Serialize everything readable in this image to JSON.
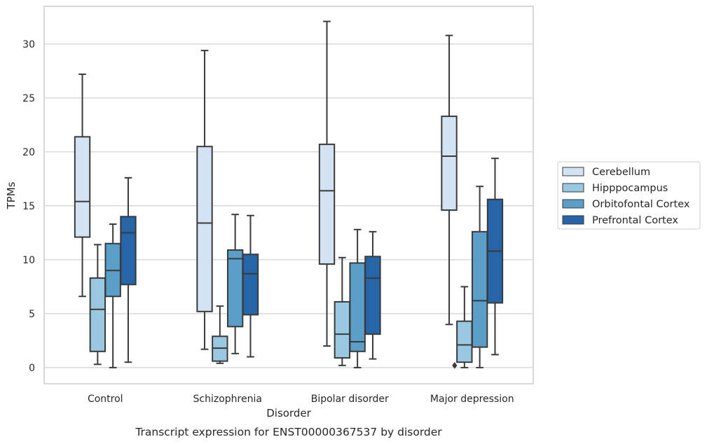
{
  "chart_data": {
    "type": "box",
    "title": "Transcript expression for ENST00000367537 by disorder",
    "xlabel": "Disorder",
    "ylabel": "TPMs",
    "ylim": [
      -1.5,
      33.5
    ],
    "yticks": [
      0,
      5,
      10,
      15,
      20,
      25,
      30
    ],
    "grid": true,
    "legend_position": "right",
    "categories": [
      "Control",
      "Schizophrenia",
      "Bipolar disorder",
      "Major depression"
    ],
    "series": [
      {
        "name": "Cerebellum",
        "color": "#d4e3f3",
        "boxes": [
          {
            "whisker_low": 6.6,
            "q1": 12.1,
            "median": 15.4,
            "q3": 21.4,
            "whisker_high": 27.2,
            "outliers": []
          },
          {
            "whisker_low": 1.7,
            "q1": 5.2,
            "median": 13.4,
            "q3": 20.5,
            "whisker_high": 29.4,
            "outliers": []
          },
          {
            "whisker_low": 2.0,
            "q1": 9.6,
            "median": 16.4,
            "q3": 20.7,
            "whisker_high": 32.1,
            "outliers": []
          },
          {
            "whisker_low": 4.0,
            "q1": 14.6,
            "median": 19.6,
            "q3": 23.3,
            "whisker_high": 30.8,
            "outliers": []
          }
        ]
      },
      {
        "name": "Hipppocampus",
        "color": "#9ac8e0",
        "boxes": [
          {
            "whisker_low": 0.3,
            "q1": 1.5,
            "median": 5.4,
            "q3": 8.3,
            "whisker_high": 11.4,
            "outliers": []
          },
          {
            "whisker_low": 0.4,
            "q1": 0.6,
            "median": 1.8,
            "q3": 2.9,
            "whisker_high": 5.7,
            "outliers": []
          },
          {
            "whisker_low": 0.2,
            "q1": 0.9,
            "median": 3.1,
            "q3": 6.1,
            "whisker_high": 10.2,
            "outliers": []
          },
          {
            "whisker_low": 0.0,
            "q1": 0.5,
            "median": 2.1,
            "q3": 4.3,
            "whisker_high": 7.5,
            "outliers": [
              0.2
            ]
          }
        ]
      },
      {
        "name": "Orbitofontal Cortex",
        "color": "#5b9fc9",
        "boxes": [
          {
            "whisker_low": 0.0,
            "q1": 6.6,
            "median": 9.0,
            "q3": 11.5,
            "whisker_high": 13.3,
            "outliers": []
          },
          {
            "whisker_low": 1.3,
            "q1": 3.8,
            "median": 10.1,
            "q3": 10.9,
            "whisker_high": 14.2,
            "outliers": []
          },
          {
            "whisker_low": 0.0,
            "q1": 1.5,
            "median": 2.4,
            "q3": 9.7,
            "whisker_high": 12.8,
            "outliers": []
          },
          {
            "whisker_low": 0.0,
            "q1": 1.9,
            "median": 6.2,
            "q3": 12.6,
            "whisker_high": 16.8,
            "outliers": []
          }
        ]
      },
      {
        "name": "Prefrontal Cortex",
        "color": "#2565a8",
        "boxes": [
          {
            "whisker_low": 0.5,
            "q1": 7.7,
            "median": 12.5,
            "q3": 14.0,
            "whisker_high": 17.6,
            "outliers": []
          },
          {
            "whisker_low": 1.0,
            "q1": 4.9,
            "median": 8.7,
            "q3": 10.5,
            "whisker_high": 14.1,
            "outliers": []
          },
          {
            "whisker_low": 0.8,
            "q1": 3.1,
            "median": 8.3,
            "q3": 10.3,
            "whisker_high": 12.6,
            "outliers": []
          },
          {
            "whisker_low": 1.2,
            "q1": 6.0,
            "median": 10.8,
            "q3": 15.6,
            "whisker_high": 19.4,
            "outliers": []
          }
        ]
      }
    ]
  }
}
